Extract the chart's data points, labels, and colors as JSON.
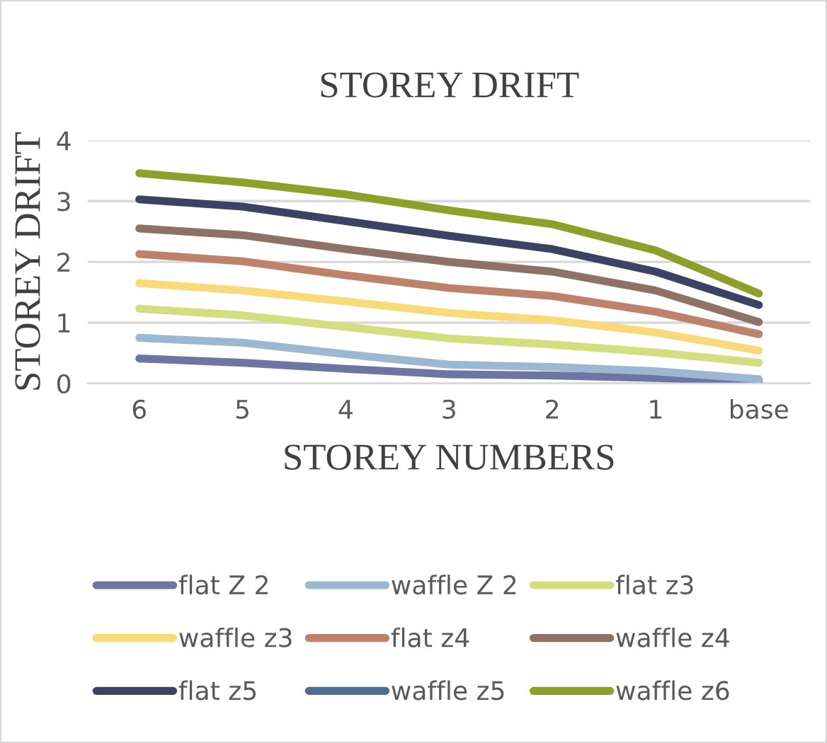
{
  "chart_data": {
    "type": "line",
    "title": "STOREY DRIFT",
    "xlabel": "STOREY NUMBERS",
    "ylabel": "STOREY DRIFT",
    "categories": [
      "6",
      "5",
      "4",
      "3",
      "2",
      "1",
      "base"
    ],
    "ylim": [
      0,
      4
    ],
    "yticks": [
      0,
      1,
      2,
      3,
      4
    ],
    "grid": "y",
    "legend": "bottom",
    "marker": "none",
    "line_style": "solid",
    "series": [
      {
        "name": "flat Z 2",
        "color": "#6d75a3",
        "values": [
          0.41,
          0.34,
          0.24,
          0.15,
          0.13,
          0.09,
          0.03
        ]
      },
      {
        "name": "waffle Z 2",
        "color": "#9bb8d0",
        "values": [
          0.75,
          0.67,
          0.48,
          0.31,
          0.27,
          0.2,
          0.07
        ]
      },
      {
        "name": "flat z3",
        "color": "#d3de7e",
        "values": [
          1.23,
          1.12,
          0.93,
          0.74,
          0.64,
          0.51,
          0.34
        ]
      },
      {
        "name": "waffle z3",
        "color": "#fad97a",
        "values": [
          1.65,
          1.53,
          1.35,
          1.16,
          1.04,
          0.84,
          0.54
        ]
      },
      {
        "name": "flat z4",
        "color": "#bd826b",
        "values": [
          2.13,
          2.01,
          1.78,
          1.57,
          1.44,
          1.18,
          0.81
        ]
      },
      {
        "name": "waffle z4",
        "color": "#8f7266",
        "values": [
          2.55,
          2.44,
          2.21,
          2.0,
          1.84,
          1.53,
          1.01
        ]
      },
      {
        "name": "flat z5",
        "color": "#3b4262",
        "values": [
          3.03,
          2.91,
          2.67,
          2.43,
          2.21,
          1.84,
          1.29
        ]
      },
      {
        "name": "waffle z5",
        "color": "#4a6f90",
        "values": [
          null,
          null,
          null,
          null,
          null,
          null,
          null
        ]
      },
      {
        "name": "waffle z6",
        "color": "#8fa02a",
        "values": [
          3.46,
          3.31,
          3.11,
          2.85,
          2.62,
          2.19,
          1.48
        ]
      }
    ]
  }
}
